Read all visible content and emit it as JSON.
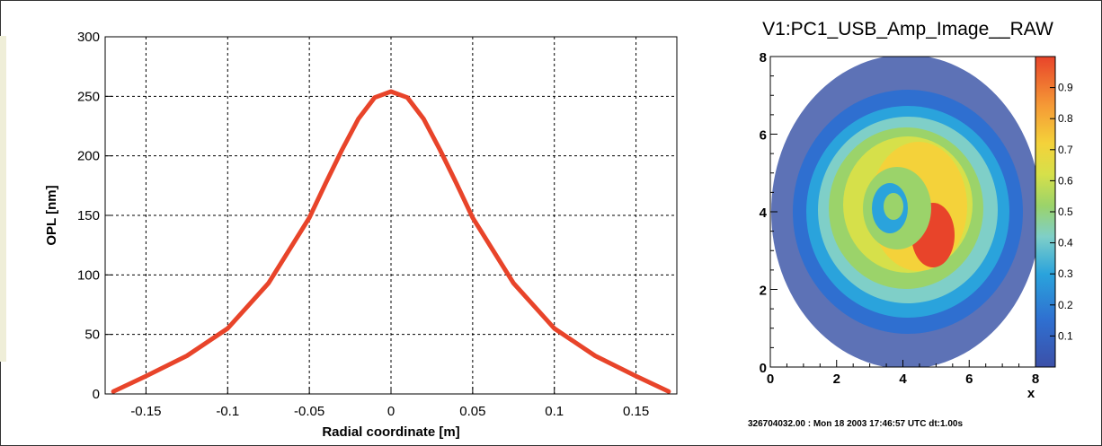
{
  "colors": {
    "line": "#e8442a",
    "background": "#5d72b6",
    "grid": "#000000"
  },
  "chart_data": [
    {
      "type": "line",
      "title": "",
      "xlabel": "Radial coordinate [m]",
      "ylabel": "OPL [nm]",
      "xlim": [
        -0.175,
        0.175
      ],
      "ylim": [
        0,
        300
      ],
      "xticks": [
        -0.15,
        -0.1,
        -0.05,
        0,
        0.05,
        0.1,
        0.15
      ],
      "xtick_labels": [
        "-0.15",
        "-0.1",
        "-0.05",
        "0",
        "0.05",
        "0.1",
        "0.15"
      ],
      "yticks": [
        0,
        50,
        100,
        150,
        200,
        250,
        300
      ],
      "ytick_labels": [
        "0",
        "50",
        "100",
        "150",
        "200",
        "250",
        "300"
      ],
      "grid": true,
      "series": [
        {
          "name": "",
          "x": [
            -0.17,
            -0.15,
            -0.125,
            -0.1,
            -0.075,
            -0.05,
            -0.04,
            -0.03,
            -0.02,
            -0.01,
            0,
            0.01,
            0.02,
            0.03,
            0.04,
            0.05,
            0.075,
            0.1,
            0.125,
            0.15,
            0.17
          ],
          "y": [
            2,
            15,
            32,
            55,
            93,
            148,
            177,
            205,
            231,
            249,
            254,
            249,
            231,
            205,
            177,
            148,
            93,
            55,
            32,
            15,
            2
          ]
        }
      ]
    },
    {
      "type": "heatmap",
      "title": "V1:PC1_USB_Amp_Image__RAW",
      "xlabel": "x",
      "ylabel": "",
      "xlim": [
        0,
        8
      ],
      "ylim": [
        0,
        8
      ],
      "xticks": [
        0,
        2,
        4,
        6,
        8
      ],
      "xtick_labels": [
        "0",
        "2",
        "4",
        "6",
        "8"
      ],
      "yticks": [
        0,
        2,
        4,
        6,
        8
      ],
      "ytick_labels": [
        "0",
        "2",
        "4",
        "6",
        "8"
      ],
      "colorbar": {
        "range": [
          0,
          1
        ],
        "ticks": [
          0.1,
          0.2,
          0.3,
          0.4,
          0.5,
          0.6,
          0.7,
          0.8,
          0.9
        ],
        "tick_labels": [
          "0.1",
          "0.2",
          "0.3",
          "0.4",
          "0.5",
          "0.6",
          "0.7",
          "0.8",
          "0.9"
        ]
      },
      "footer": "326704032.00 : Mon 18 2003 17:46:57 UTC  dt:1.00s"
    }
  ]
}
